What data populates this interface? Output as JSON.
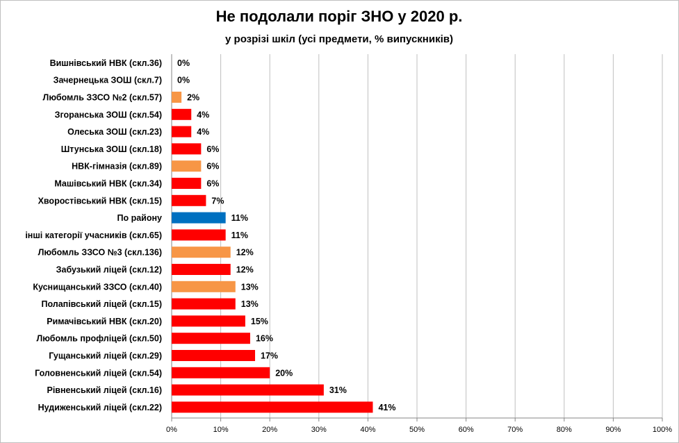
{
  "chart_data": {
    "type": "bar",
    "orientation": "horizontal",
    "title": "Не подолали поріг ЗНО у 2020 р.",
    "subtitle": "у розрізі шкіл (усі предмети, % випускників)",
    "xlabel": "",
    "ylabel": "",
    "xlim": [
      0,
      100
    ],
    "x_ticks": [
      "0%",
      "10%",
      "20%",
      "30%",
      "40%",
      "50%",
      "60%",
      "70%",
      "80%",
      "90%",
      "100%"
    ],
    "grid": "vertical",
    "legend": "none",
    "colors": {
      "red": "#ff0000",
      "orange": "#f79646",
      "blue": "#0070c0"
    },
    "categories": [
      "Вишнівський НВК (скл.36)",
      "Зачернецька ЗОШ (скл.7)",
      "Любомль ЗЗСО №2 (скл.57)",
      "Згоранська ЗОШ (скл.54)",
      "Олеська ЗОШ (скл.23)",
      "Штунська ЗОШ (скл.18)",
      "НВК-гімназія (скл.89)",
      "Машівський НВК (скл.34)",
      "Хворостівський НВК (скл.15)",
      "По району",
      "інші категорії учасників (скл.65)",
      "Любомль ЗЗСО №3 (скл.136)",
      "Забузький ліцей (скл.12)",
      "Куснищанський ЗЗСО (скл.40)",
      "Полапівський ліцей (скл.15)",
      "Римачівський НВК (скл.20)",
      "Любомль профліцей (скл.50)",
      "Гущанський ліцей (скл.29)",
      "Головненський ліцей (скл.54)",
      "Рівненський ліцей (скл.16)",
      "Нудиженський ліцей (скл.22)"
    ],
    "values": [
      0,
      0,
      2,
      4,
      4,
      6,
      6,
      6,
      7,
      11,
      11,
      12,
      12,
      13,
      13,
      15,
      16,
      17,
      20,
      31,
      41
    ],
    "value_labels": [
      "0%",
      "0%",
      "2%",
      "4%",
      "4%",
      "6%",
      "6%",
      "6%",
      "7%",
      "11%",
      "11%",
      "12%",
      "12%",
      "13%",
      "13%",
      "15%",
      "16%",
      "17%",
      "20%",
      "31%",
      "41%"
    ],
    "bar_colors": [
      "red",
      "red",
      "orange",
      "red",
      "red",
      "red",
      "orange",
      "red",
      "red",
      "blue",
      "red",
      "orange",
      "red",
      "orange",
      "red",
      "red",
      "red",
      "red",
      "red",
      "red",
      "red"
    ]
  }
}
